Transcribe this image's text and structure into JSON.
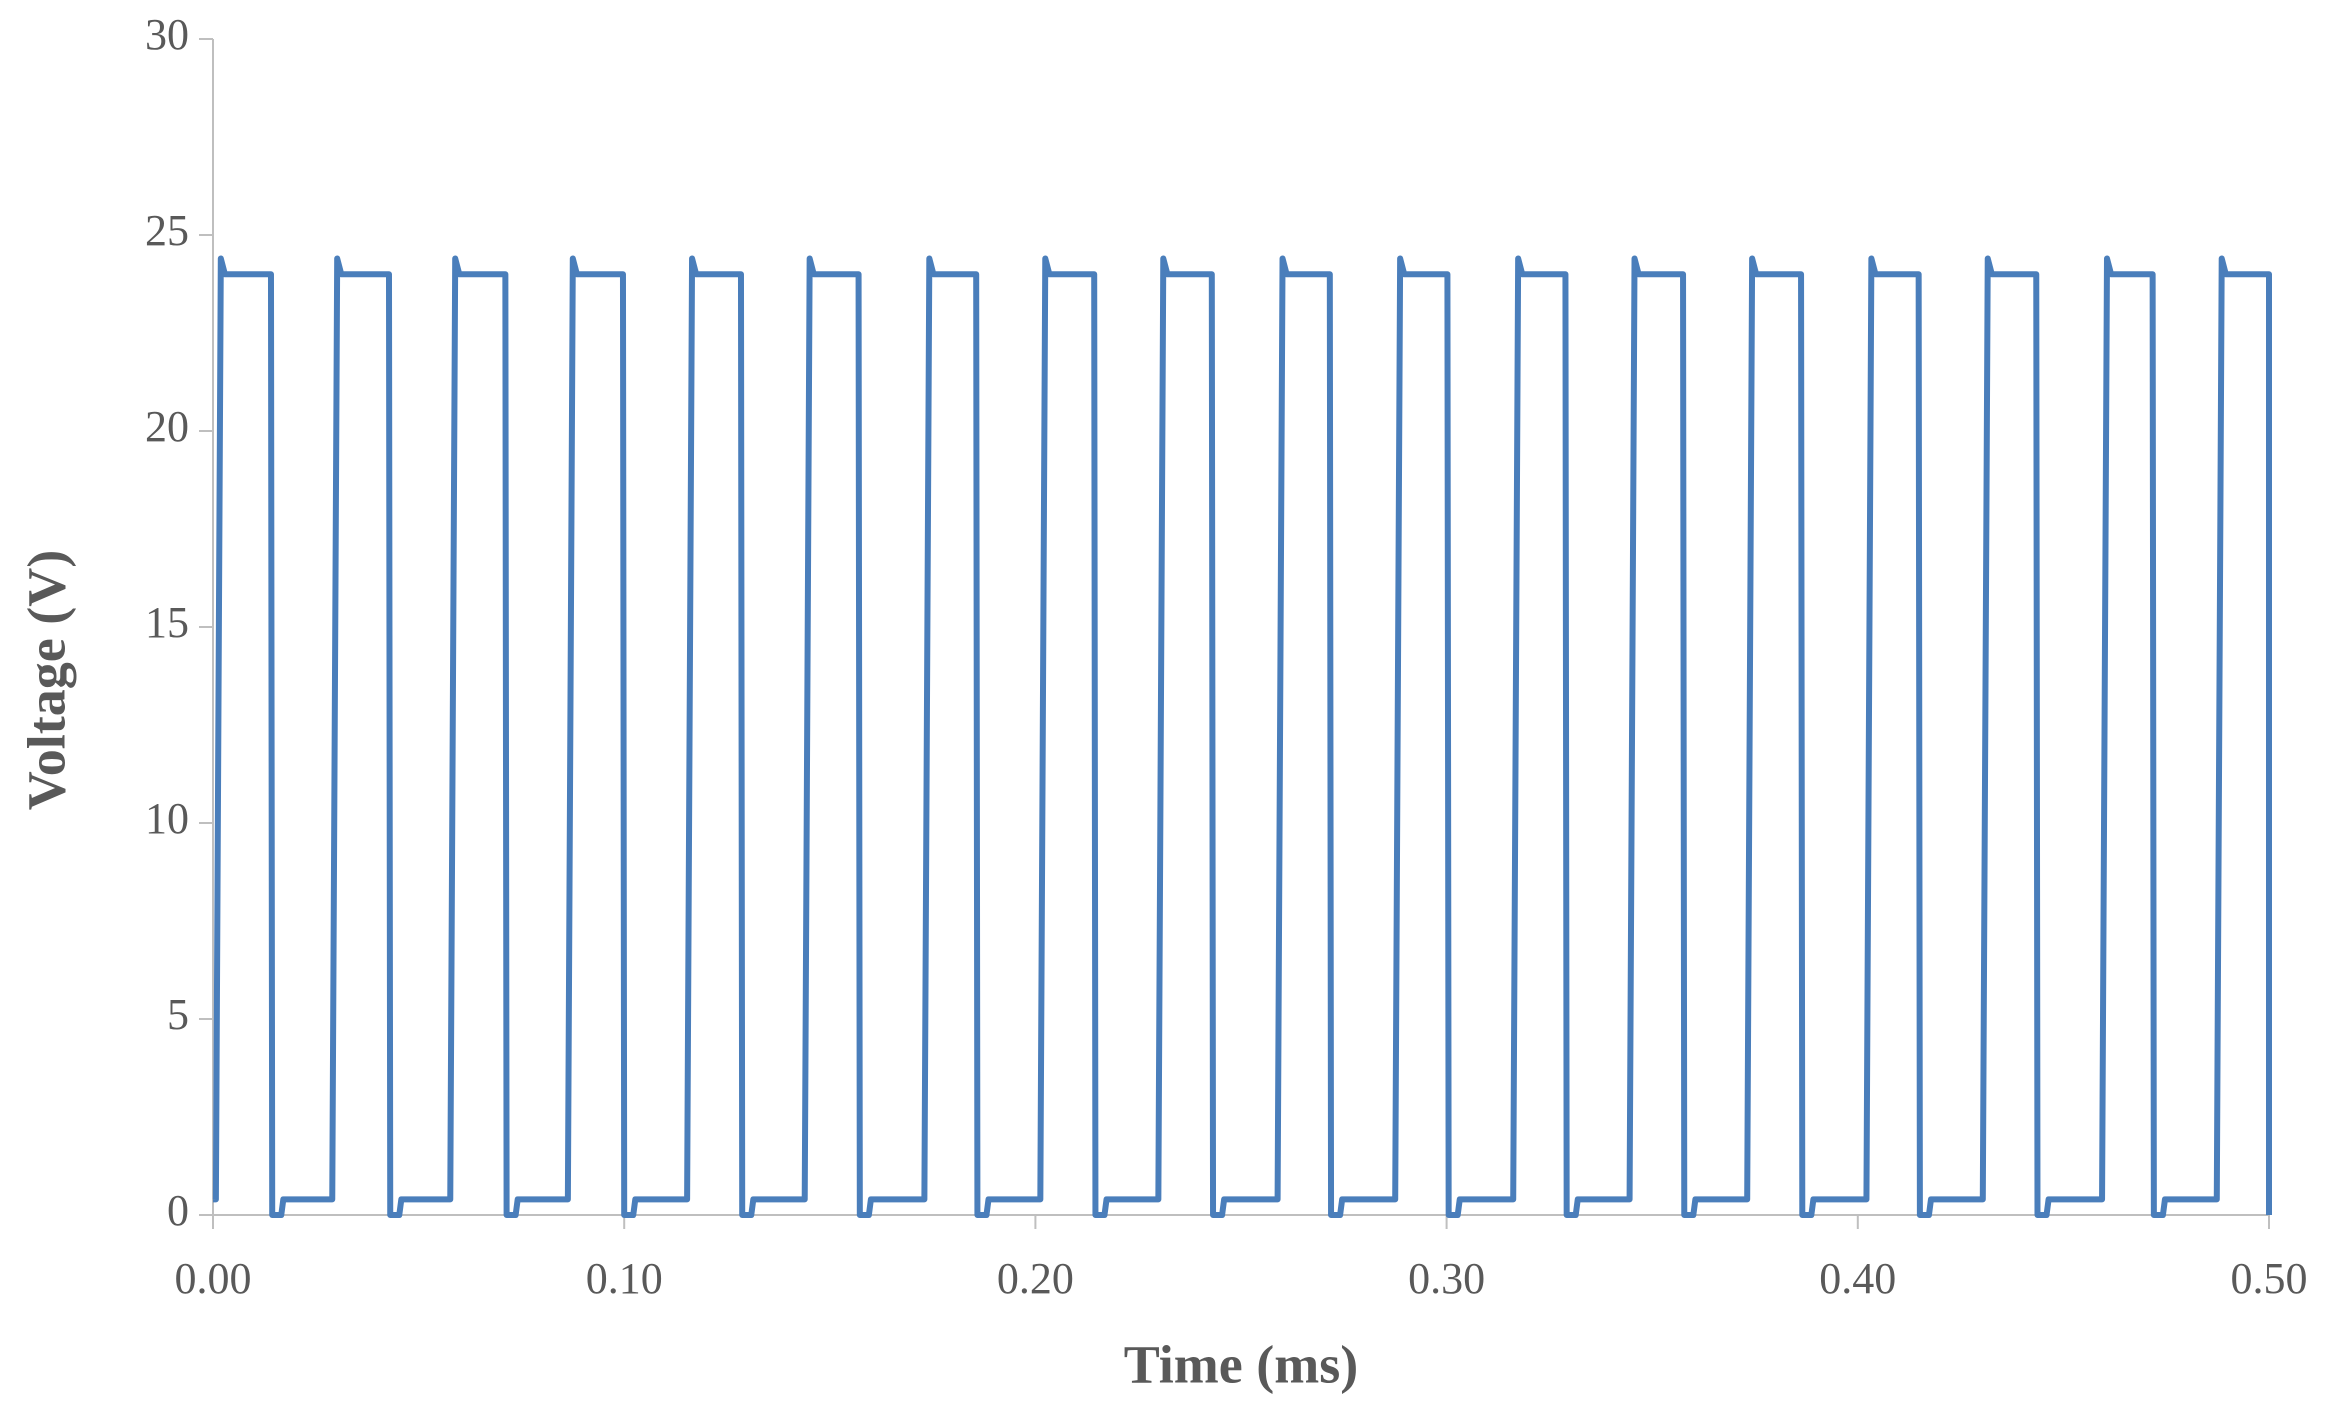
{
  "chart_data": {
    "type": "line",
    "x_label": "Time (ms)",
    "y_label": "Voltage (V)",
    "xlim": [
      0,
      0.5
    ],
    "ylim": [
      0,
      30
    ],
    "xticks": [
      {
        "value": 0,
        "label": "0.00"
      },
      {
        "value": 0.1,
        "label": "0.10"
      },
      {
        "value": 0.2,
        "label": "0.20"
      },
      {
        "value": 0.3,
        "label": "0.30"
      },
      {
        "value": 0.4,
        "label": "0.40"
      },
      {
        "value": 0.5,
        "label": "0.50"
      }
    ],
    "yticks": [
      0,
      5,
      10,
      15,
      20,
      25,
      30
    ],
    "grid": false,
    "x": [
      0,
      0.0007,
      0.0019,
      0.0029,
      0.0141,
      0.0144,
      0.0166,
      0.0171,
      0.029,
      0.0302,
      0.0312,
      0.0428,
      0.0431,
      0.0453,
      0.0458,
      0.0577,
      0.0589,
      0.0599,
      0.0711,
      0.0714,
      0.0736,
      0.0741,
      0.0863,
      0.0875,
      0.0885,
      0.0997,
      0.1,
      0.1022,
      0.1027,
      0.1153,
      0.1165,
      0.1175,
      0.1284,
      0.1287,
      0.1309,
      0.1314,
      0.1439,
      0.1451,
      0.1461,
      0.157,
      0.1573,
      0.1595,
      0.16,
      0.173,
      0.1742,
      0.1752,
      0.1856,
      0.1859,
      0.1881,
      0.1886,
      0.2012,
      0.2024,
      0.2034,
      0.2143,
      0.2146,
      0.2168,
      0.2173,
      0.2299,
      0.2311,
      0.2321,
      0.2429,
      0.2432,
      0.2454,
      0.2459,
      0.2589,
      0.2601,
      0.2611,
      0.2716,
      0.2719,
      0.2741,
      0.2746,
      0.2875,
      0.2887,
      0.2897,
      0.3002,
      0.3005,
      0.3027,
      0.3032,
      0.3162,
      0.3174,
      0.3184,
      0.3289,
      0.3292,
      0.3314,
      0.3319,
      0.3445,
      0.3457,
      0.3467,
      0.3575,
      0.3578,
      0.36,
      0.3605,
      0.3731,
      0.3743,
      0.3753,
      0.3862,
      0.3865,
      0.3887,
      0.3892,
      0.4021,
      0.4033,
      0.4043,
      0.4148,
      0.4151,
      0.4173,
      0.4178,
      0.4304,
      0.4316,
      0.4326,
      0.4434,
      0.4437,
      0.4459,
      0.4464,
      0.4594,
      0.4606,
      0.4616,
      0.4717,
      0.472,
      0.4742,
      0.4747,
      0.4873,
      0.4885,
      0.4895,
      0.5,
      0.5
    ],
    "series": [
      {
        "name": "Voltage",
        "color": "#4a7ebb",
        "values": [
          0.4,
          0.4,
          24.4,
          24,
          24,
          0,
          0,
          0.4,
          0.4,
          24.4,
          24,
          24,
          0,
          0,
          0.4,
          0.4,
          24.4,
          24,
          24,
          0,
          0,
          0.4,
          0.4,
          24.4,
          24,
          24,
          0,
          0,
          0.4,
          0.4,
          24.4,
          24,
          24,
          0,
          0,
          0.4,
          0.4,
          24.4,
          24,
          24,
          0,
          0,
          0.4,
          0.4,
          24.4,
          24,
          24,
          0,
          0,
          0.4,
          0.4,
          24.4,
          24,
          24,
          0,
          0,
          0.4,
          0.4,
          24.4,
          24,
          24,
          0,
          0,
          0.4,
          0.4,
          24.4,
          24,
          24,
          0,
          0,
          0.4,
          0.4,
          24.4,
          24,
          24,
          0,
          0,
          0.4,
          0.4,
          24.4,
          24,
          24,
          0,
          0,
          0.4,
          0.4,
          24.4,
          24,
          24,
          0,
          0,
          0.4,
          0.4,
          24.4,
          24,
          24,
          0,
          0,
          0.4,
          0.4,
          24.4,
          24,
          24,
          0,
          0,
          0.4,
          0.4,
          24.4,
          24,
          24,
          0,
          0,
          0.4,
          0.4,
          24.4,
          24,
          24,
          0,
          0,
          0.4,
          0.4,
          24.4,
          24,
          24,
          0
        ]
      }
    ]
  }
}
